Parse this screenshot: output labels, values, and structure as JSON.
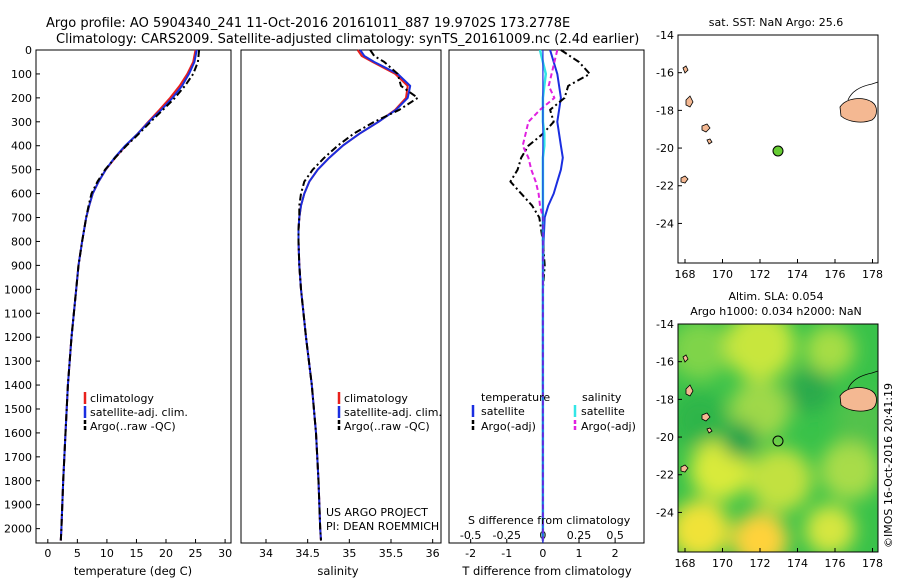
{
  "header": {
    "line1": "Argo profile: AO 5904340_241 11-Oct-2016 20161011_887 19.9702S 173.2778E",
    "line2": "Climatology: CARS2009. Satellite-adjusted climatology: synTS_20161009.nc (2.4d earlier)"
  },
  "colors": {
    "climatology": "#e8201c",
    "satellite": "#1a2ee0",
    "argo": "#000000",
    "sal_satellite": "#33e6e6",
    "sal_argo": "#e020e0",
    "land": "#f4b892",
    "float_marker": "#66cc33",
    "map_bg": "#ffffff"
  },
  "depth_axis": {
    "ticks": [
      0,
      100,
      200,
      300,
      400,
      500,
      600,
      700,
      800,
      900,
      1000,
      1100,
      1200,
      1300,
      1400,
      1500,
      1600,
      1700,
      1800,
      1900,
      2000
    ],
    "range": [
      0,
      2060
    ]
  },
  "temperature_panel": {
    "xlabel": "temperature (deg C)",
    "xticks": [
      0,
      5,
      10,
      15,
      20,
      25,
      30
    ],
    "legend": [
      "climatology",
      "satellite-adj. clim.",
      "Argo(..raw -QC)"
    ]
  },
  "salinity_panel": {
    "xlabel": "salinity",
    "xticks": [
      "34",
      "34.5",
      "35",
      "35.5",
      "36"
    ],
    "legend": [
      "climatology",
      "satellite-adj. clim.",
      "Argo(..raw -QC)"
    ],
    "credit1": "US ARGO PROJECT",
    "credit2": "PI: DEAN ROEMMICH"
  },
  "difference_panel": {
    "top_label": "S difference from climatology",
    "s_ticks": [
      "-0.5",
      "-0.25",
      "0",
      "0.25",
      "0.5"
    ],
    "t_ticks": [
      "-2",
      "-1",
      "0",
      "1",
      "2"
    ],
    "xlabel": "T difference from climatology",
    "legend_t_title": "temperature",
    "legend_s_title": "salinity",
    "legend_t": [
      "satellite",
      "Argo(-adj)"
    ],
    "legend_s": [
      "satellite",
      "Argo(-adj)"
    ]
  },
  "sst_map": {
    "title": "sat. SST: NaN Argo: 25.6",
    "yticks": [
      "-14",
      "-16",
      "-18",
      "-20",
      "-22",
      "-24"
    ],
    "xticks": [
      "168",
      "170",
      "172",
      "174",
      "176",
      "178"
    ]
  },
  "sla_map": {
    "title1": "Altim. SLA: 0.054",
    "title2": "Argo h1000: 0.034 h2000: NaN",
    "yticks": [
      "-14",
      "-16",
      "-18",
      "-20",
      "-22",
      "-24"
    ],
    "xticks": [
      "168",
      "170",
      "172",
      "174",
      "176",
      "178"
    ]
  },
  "footer_stamp": "©IMOS 16-Oct-2016 20:41:19",
  "chart_data": [
    {
      "type": "line",
      "name": "temperature",
      "xlabel": "temperature (deg C)",
      "ylabel": "",
      "xlim": [
        -2,
        31
      ],
      "ylim": [
        2060,
        0
      ],
      "depth": [
        0,
        50,
        100,
        150,
        200,
        250,
        300,
        350,
        400,
        450,
        500,
        550,
        600,
        650,
        700,
        800,
        900,
        1000,
        1200,
        1400,
        1600,
        1800,
        2000,
        2050
      ],
      "series": [
        {
          "name": "climatology",
          "values": [
            25,
            24.6,
            23.6,
            22.3,
            20.7,
            18.9,
            17.0,
            15.2,
            13.2,
            11.4,
            9.8,
            8.6,
            7.6,
            7.0,
            6.5,
            5.8,
            5.2,
            4.8,
            4.0,
            3.4,
            3.0,
            2.6,
            2.3,
            2.2
          ]
        },
        {
          "name": "satellite-adj. clim.",
          "values": [
            25.2,
            24.8,
            23.9,
            22.7,
            21.1,
            19.2,
            17.1,
            15.2,
            13.1,
            11.3,
            9.8,
            8.6,
            7.6,
            7.0,
            6.5,
            5.8,
            5.2,
            4.8,
            4.0,
            3.4,
            3.0,
            2.6,
            2.3,
            2.2
          ]
        },
        {
          "name": "Argo(..raw -QC)",
          "values": [
            25.6,
            25.4,
            24.6,
            23.2,
            21.5,
            19.5,
            17.4,
            15.4,
            13.3,
            11.4,
            9.7,
            8.4,
            7.4,
            6.9,
            6.5,
            5.8,
            5.2,
            4.8,
            4.0,
            3.4,
            3.0,
            2.6,
            2.3,
            2.2
          ]
        }
      ]
    },
    {
      "type": "line",
      "name": "salinity",
      "xlabel": "salinity",
      "xlim": [
        33.7,
        36.1
      ],
      "ylim": [
        2060,
        0
      ],
      "depth": [
        0,
        25,
        50,
        100,
        150,
        200,
        250,
        300,
        350,
        400,
        450,
        500,
        550,
        600,
        650,
        700,
        750,
        800,
        900,
        1000,
        1200,
        1400,
        1600,
        1800,
        2000,
        2050
      ],
      "series": [
        {
          "name": "climatology",
          "values": [
            35.1,
            35.15,
            35.28,
            35.55,
            35.7,
            35.68,
            35.55,
            35.35,
            35.12,
            34.92,
            34.76,
            34.62,
            34.52,
            34.46,
            34.42,
            34.4,
            34.39,
            34.39,
            34.4,
            34.42,
            34.48,
            34.55,
            34.6,
            34.63,
            34.65,
            34.66
          ]
        },
        {
          "name": "satellite-adj. clim.",
          "values": [
            35.13,
            35.18,
            35.3,
            35.58,
            35.73,
            35.7,
            35.56,
            35.35,
            35.12,
            34.92,
            34.76,
            34.62,
            34.52,
            34.46,
            34.42,
            34.4,
            34.39,
            34.39,
            34.4,
            34.42,
            34.48,
            34.55,
            34.6,
            34.63,
            34.65,
            34.66
          ]
        },
        {
          "name": "Argo(..raw -QC)",
          "values": [
            35.25,
            35.3,
            35.42,
            35.58,
            35.62,
            35.82,
            35.6,
            35.3,
            35.05,
            34.86,
            34.7,
            34.56,
            34.46,
            34.42,
            34.4,
            34.4,
            34.39,
            34.39,
            34.4,
            34.42,
            34.48,
            34.55,
            34.6,
            34.63,
            34.65,
            34.66
          ]
        }
      ]
    },
    {
      "type": "line",
      "name": "difference",
      "xlabel": "T difference from climatology",
      "x2label": "S difference from climatology",
      "xlim": [
        -2.6,
        2.8
      ],
      "ylim": [
        2060,
        0
      ],
      "depth": [
        0,
        50,
        100,
        150,
        200,
        250,
        300,
        350,
        400,
        450,
        500,
        550,
        600,
        650,
        700,
        800,
        900,
        1000,
        1200,
        1400,
        1600,
        1800,
        2000,
        2050
      ],
      "series": [
        {
          "name": "temperature satellite",
          "values": [
            0.2,
            0.3,
            0.4,
            0.45,
            0.5,
            0.45,
            0.4,
            0.45,
            0.5,
            0.55,
            0.5,
            0.4,
            0.3,
            0.15,
            0.05,
            0.02,
            0.01,
            0,
            0,
            0,
            0,
            0,
            0,
            0
          ]
        },
        {
          "name": "temperature Argo(-adj)",
          "values": [
            0.5,
            1.0,
            1.3,
            0.7,
            0.6,
            0.2,
            0.3,
            0.0,
            -0.4,
            -0.6,
            -0.7,
            -0.9,
            -0.6,
            -0.3,
            -0.1,
            0,
            0.05,
            0,
            0,
            0,
            0,
            0,
            0,
            0
          ]
        },
        {
          "name": "salinity satellite",
          "values": [
            -0.02,
            0.0,
            0.02,
            0.01,
            0.0,
            0.0,
            0.0,
            0.01,
            0.01,
            0.0,
            0,
            0,
            0,
            0,
            0,
            0,
            0,
            0,
            0,
            0,
            0,
            0,
            0,
            0
          ]
        },
        {
          "name": "salinity Argo(-adj)",
          "values": [
            0.1,
            0.08,
            0.06,
            0.04,
            0.08,
            -0.02,
            -0.1,
            -0.12,
            -0.14,
            -0.1,
            -0.08,
            -0.05,
            -0.03,
            -0.02,
            0,
            0,
            0,
            0,
            0,
            0,
            0,
            0,
            0,
            0
          ]
        }
      ]
    }
  ]
}
